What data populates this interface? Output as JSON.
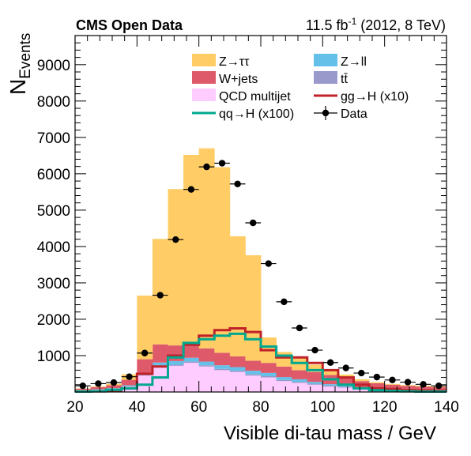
{
  "header": {
    "experiment": "CMS Open Data",
    "lumi_value": "11.5 fb",
    "lumi_exponent": "-1",
    "lumi_suffix": " (2012, 8 TeV)"
  },
  "axes": {
    "ylabel_main": "N",
    "ylabel_sub": "Events",
    "xlabel": "Visible di-tau mass / GeV"
  },
  "colors": {
    "ztt": "#ffcc66",
    "wjets": "#de5a6a",
    "qcd": "#ffccff",
    "zll": "#64c0e8",
    "tt": "#9999cc",
    "ggh": "#bf2229",
    "qqh": "#00a88f",
    "data": "#000000"
  },
  "legend": {
    "items": [
      {
        "key": "ztt",
        "label": "Z→ττ",
        "kind": "fill"
      },
      {
        "key": "zll",
        "label": "Z→ll",
        "kind": "fill"
      },
      {
        "key": "wjets",
        "label": "W+jets",
        "kind": "fill"
      },
      {
        "key": "tt",
        "label": "tt̄",
        "kind": "fill"
      },
      {
        "key": "qcd",
        "label": "QCD multijet",
        "kind": "fill"
      },
      {
        "key": "ggh",
        "label": "gg→H (x10)",
        "kind": "line"
      },
      {
        "key": "qqh",
        "label": "qq→H (x100)",
        "kind": "line"
      },
      {
        "key": "data",
        "label": "Data",
        "kind": "marker"
      }
    ]
  },
  "chart_data": {
    "type": "histogram",
    "xlabel": "Visible di-tau mass / GeV",
    "ylabel": "N_Events",
    "xlim": [
      20,
      140
    ],
    "ylim": [
      0,
      9800
    ],
    "bin_edges": [
      20,
      25,
      30,
      35,
      40,
      45,
      50,
      55,
      60,
      65,
      70,
      75,
      80,
      85,
      90,
      95,
      100,
      105,
      110,
      115,
      120,
      125,
      130,
      135,
      140
    ],
    "xticks": [
      20,
      40,
      60,
      80,
      100,
      120,
      140
    ],
    "yticks": [
      1000,
      2000,
      3000,
      4000,
      5000,
      6000,
      7000,
      8000,
      9000
    ],
    "stack_order_bottom_to_top": [
      "qcd",
      "tt",
      "zll",
      "wjets",
      "ztt"
    ],
    "series": [
      {
        "key": "qcd",
        "name": "QCD multijet",
        "kind": "stacked",
        "values": [
          40,
          60,
          80,
          150,
          450,
          700,
          720,
          800,
          700,
          600,
          550,
          450,
          400,
          300,
          250,
          200,
          150,
          120,
          90,
          60,
          50,
          40,
          35,
          30
        ]
      },
      {
        "key": "tt",
        "name": "tt̄",
        "kind": "stacked",
        "values": [
          5,
          5,
          10,
          15,
          20,
          30,
          30,
          35,
          35,
          35,
          35,
          35,
          35,
          30,
          30,
          28,
          25,
          22,
          20,
          18,
          16,
          14,
          12,
          10
        ]
      },
      {
        "key": "zll",
        "name": "Z→ll",
        "kind": "stacked",
        "values": [
          5,
          10,
          15,
          20,
          50,
          80,
          100,
          105,
          100,
          100,
          100,
          100,
          90,
          80,
          70,
          50,
          40,
          30,
          20,
          15,
          10,
          10,
          8,
          6
        ]
      },
      {
        "key": "wjets",
        "name": "W+jets",
        "kind": "stacked",
        "values": [
          40,
          60,
          80,
          150,
          380,
          500,
          430,
          380,
          365,
          345,
          295,
          275,
          275,
          290,
          250,
          272,
          255,
          208,
          170,
          147,
          124,
          106,
          95,
          84
        ]
      },
      {
        "key": "ztt",
        "name": "Z→ττ",
        "kind": "stacked",
        "values": [
          10,
          20,
          40,
          150,
          1750,
          2900,
          4300,
          5200,
          5500,
          5100,
          3300,
          2900,
          700,
          400,
          350,
          200,
          130,
          100,
          50,
          30,
          20,
          20,
          20,
          20
        ]
      },
      {
        "key": "ggh",
        "name": "gg→H (x10)",
        "kind": "line",
        "values": [
          10,
          20,
          40,
          100,
          500,
          700,
          1000,
          1300,
          1550,
          1700,
          1750,
          1650,
          1150,
          950,
          950,
          800,
          600,
          400,
          200,
          100,
          80,
          50,
          40,
          30
        ]
      },
      {
        "key": "qqh",
        "name": "qq→H (x100)",
        "kind": "line",
        "values": [
          10,
          20,
          60,
          100,
          200,
          400,
          950,
          1350,
          1450,
          1550,
          1600,
          1450,
          1250,
          1000,
          800,
          600,
          350,
          200,
          100,
          50,
          30,
          20,
          10,
          10
        ]
      }
    ],
    "data": {
      "name": "Data",
      "x": [
        22.5,
        27.5,
        32.5,
        37.5,
        42.5,
        47.5,
        52.5,
        57.5,
        62.5,
        67.5,
        72.5,
        77.5,
        82.5,
        87.5,
        92.5,
        97.5,
        102.5,
        107.5,
        112.5,
        117.5,
        122.5,
        127.5,
        132.5,
        137.5
      ],
      "y": [
        170,
        230,
        260,
        420,
        1070,
        2660,
        4190,
        5570,
        6190,
        6290,
        5720,
        4650,
        3530,
        2480,
        1760,
        1150,
        810,
        660,
        520,
        410,
        330,
        270,
        210,
        170
      ]
    }
  }
}
